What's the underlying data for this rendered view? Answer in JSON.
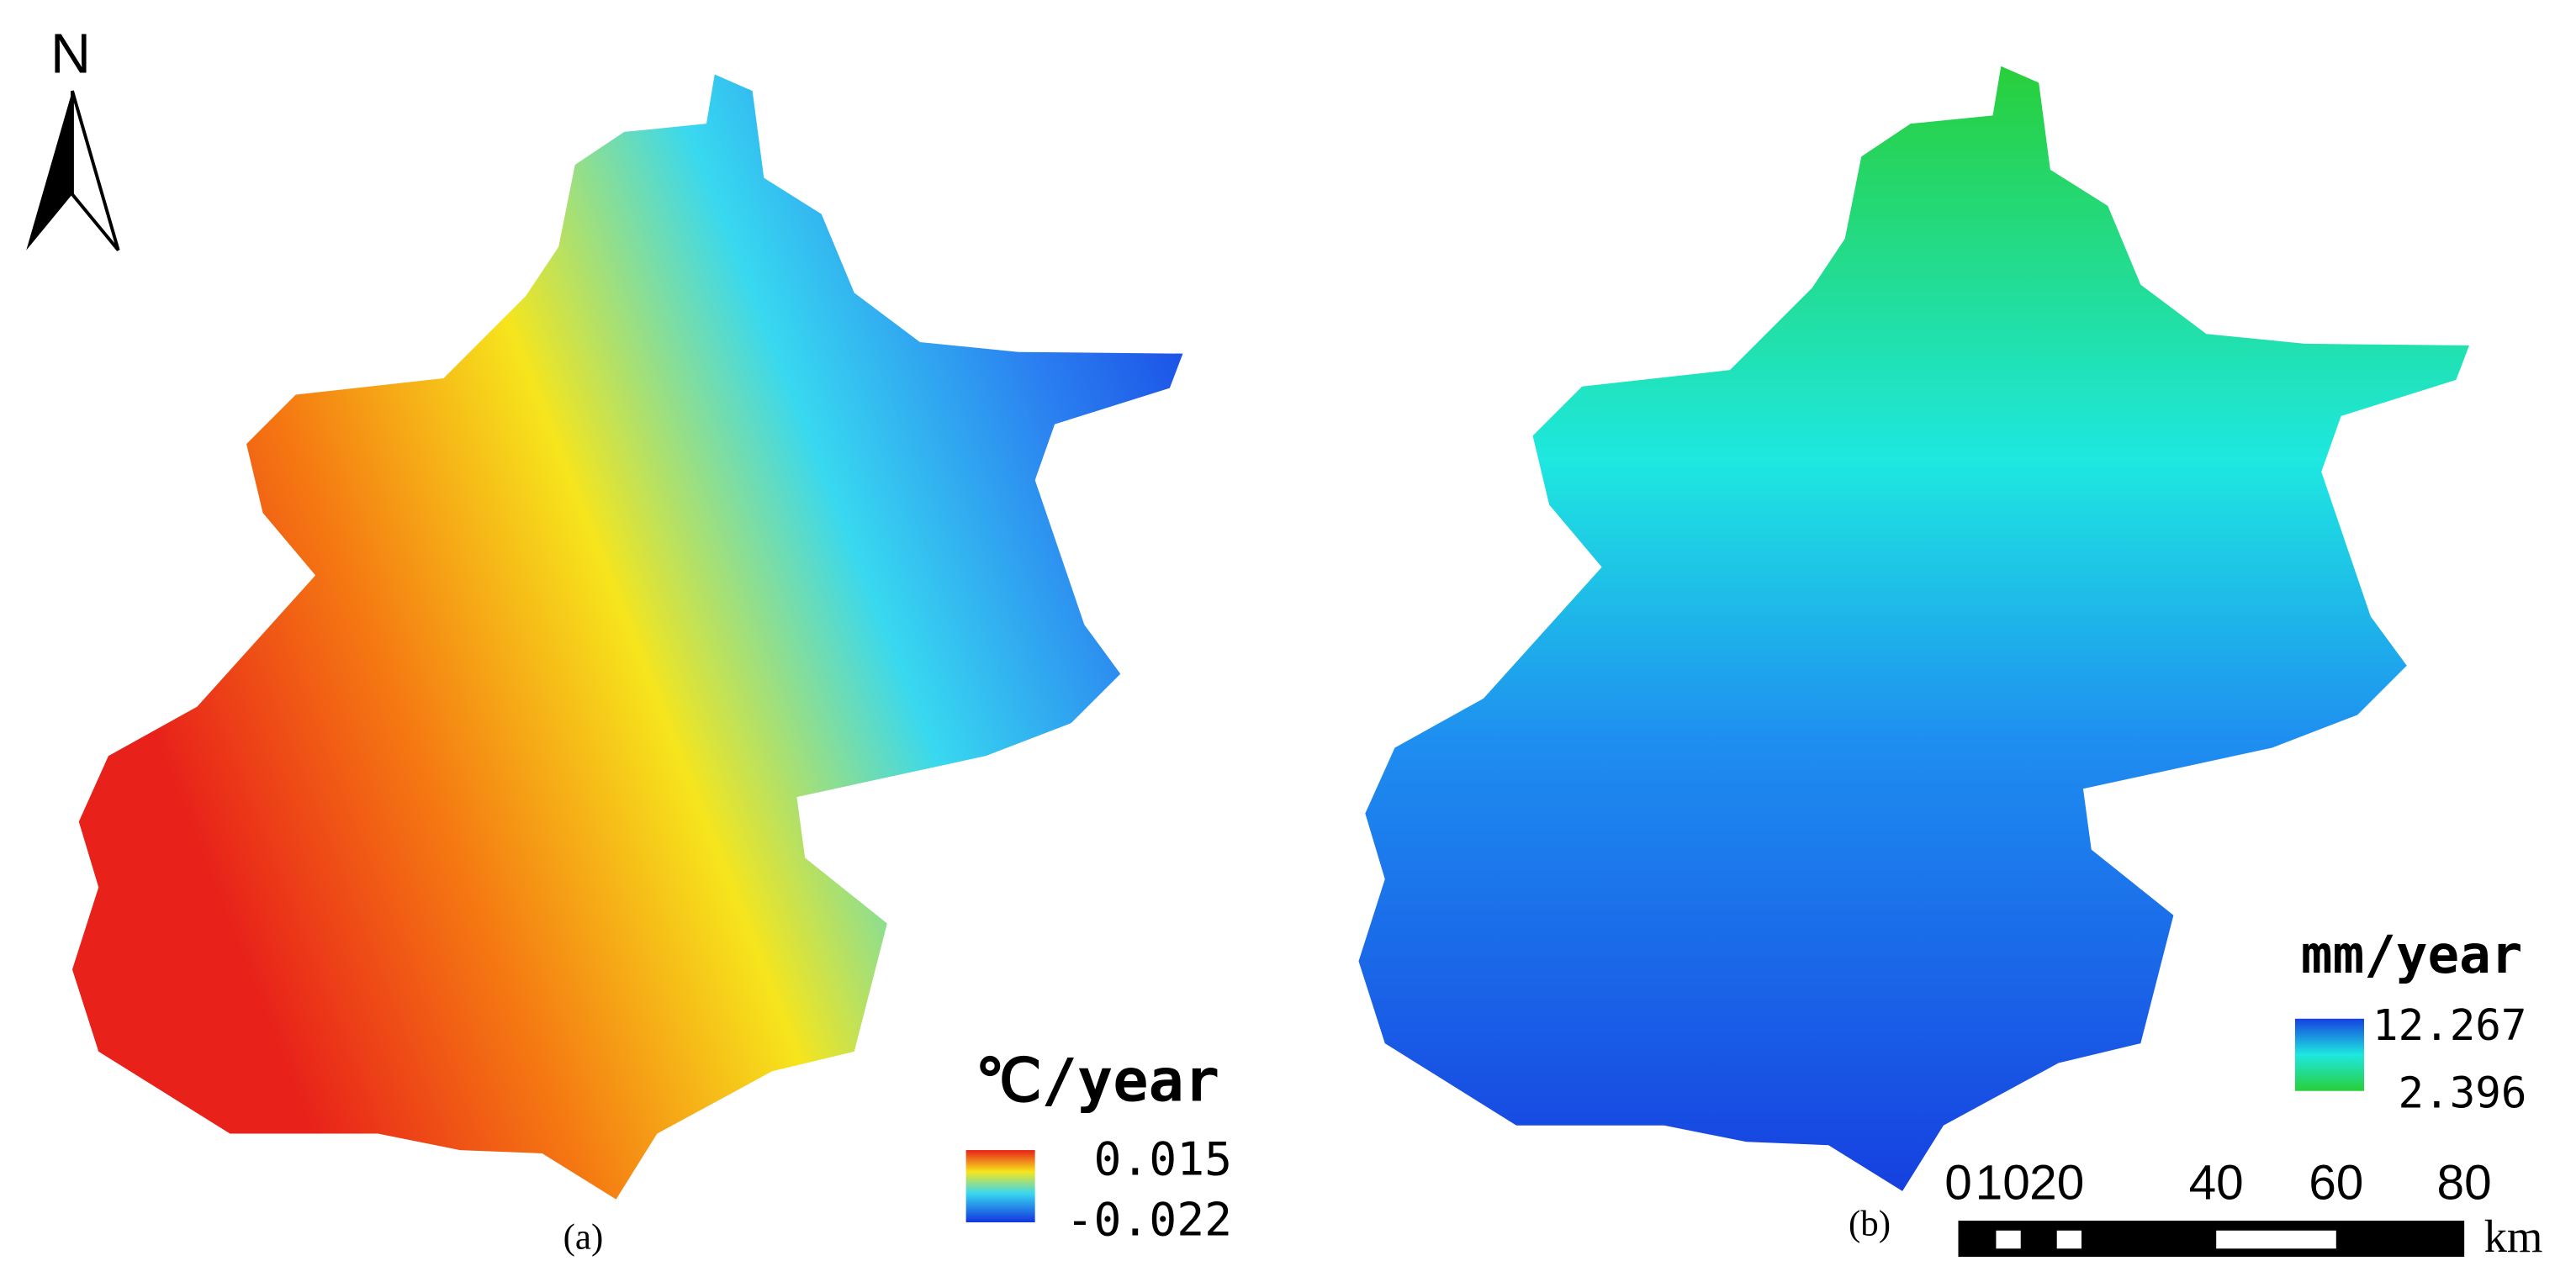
{
  "north": "N",
  "panels": [
    {
      "label": "(a)",
      "unit": "℃/year",
      "legend_max": "0.015",
      "legend_min": "-0.022"
    },
    {
      "label": "(b)",
      "unit": "mm/year",
      "legend_max": "12.267",
      "legend_min": "2.396"
    }
  ],
  "scale_bar": {
    "ticks": [
      "0",
      "10",
      "20",
      "40",
      "60",
      "80"
    ],
    "unit": "km"
  }
}
